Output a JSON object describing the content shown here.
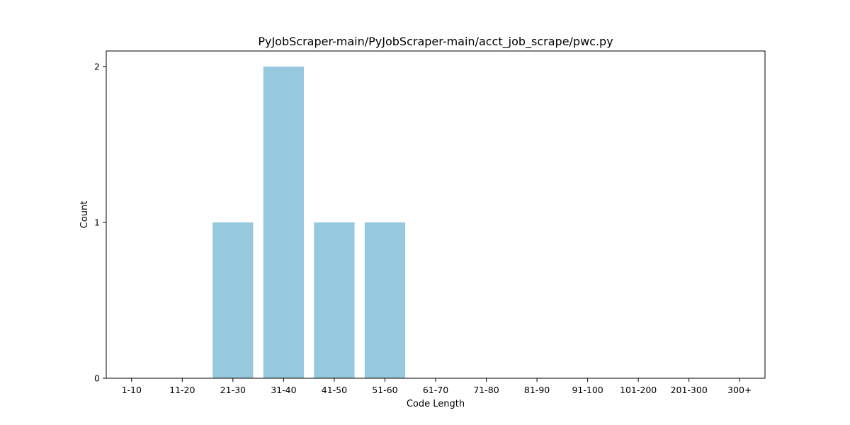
{
  "chart_data": {
    "type": "bar",
    "title": "PyJobScraper-main/PyJobScraper-main/acct_job_scrape/pwc.py",
    "xlabel": "Code Length",
    "ylabel": "Count",
    "categories": [
      "1-10",
      "11-20",
      "21-30",
      "31-40",
      "41-50",
      "51-60",
      "61-70",
      "71-80",
      "81-90",
      "91-100",
      "101-200",
      "201-300",
      "300+"
    ],
    "values": [
      0,
      0,
      1,
      2,
      1,
      1,
      0,
      0,
      0,
      0,
      0,
      0,
      0
    ],
    "ylim": [
      0,
      2.1
    ],
    "yticks": [
      "0",
      "1",
      "2"
    ],
    "bar_color": "#96c9de",
    "grid": false,
    "legend": false
  }
}
